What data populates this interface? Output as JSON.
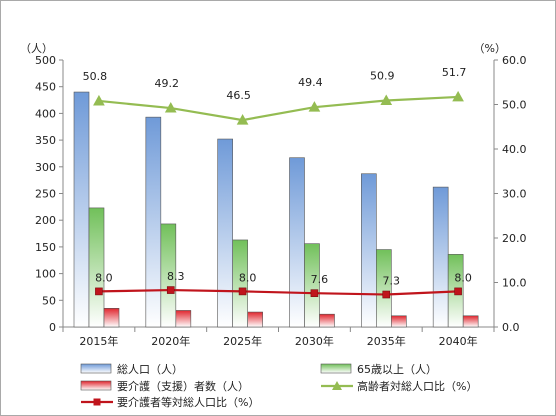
{
  "chart_data": {
    "type": "bar",
    "categories": [
      "2015年",
      "2020年",
      "2025年",
      "2030年",
      "2035年",
      "2040年"
    ],
    "left_axis": {
      "unit_label": "（人）",
      "ylim": [
        0,
        500
      ],
      "ticks": [
        0,
        50,
        100,
        150,
        200,
        250,
        300,
        350,
        400,
        450,
        500
      ]
    },
    "right_axis": {
      "unit_label": "（%）",
      "ylim": [
        0,
        60
      ],
      "ticks": [
        "0.0",
        "10.0",
        "20.0",
        "30.0",
        "40.0",
        "50.0",
        "60.0"
      ]
    },
    "series": [
      {
        "name": "総人口（人）",
        "type": "bar",
        "axis": "left",
        "color": "#6f9ad8",
        "values": [
          440,
          393,
          352,
          317,
          287,
          262
        ]
      },
      {
        "name": "65歳以上（人）",
        "type": "bar",
        "axis": "left",
        "color": "#71c05a",
        "values": [
          223,
          193,
          163,
          156,
          145,
          136
        ]
      },
      {
        "name": "要介護（支援）者数（人）",
        "type": "bar",
        "axis": "left",
        "color": "#e0262e",
        "values": [
          35,
          31,
          28,
          24,
          21,
          21
        ]
      },
      {
        "name": "高齢者対総人口比（%）",
        "type": "line",
        "axis": "right",
        "color": "#94bc52",
        "marker": "triangle",
        "values": [
          50.8,
          49.2,
          46.5,
          49.4,
          50.9,
          51.7
        ],
        "labels": [
          "50.8",
          "49.2",
          "46.5",
          "49.4",
          "50.9",
          "51.7"
        ]
      },
      {
        "name": "要介護者等対総人口比（%）",
        "type": "line",
        "axis": "right",
        "color": "#c0141c",
        "marker": "square",
        "values": [
          8.0,
          8.3,
          8.0,
          7.6,
          7.3,
          8.0
        ],
        "labels": [
          "8.0",
          "8.3",
          "8.0",
          "7.6",
          "7.3",
          "8.0"
        ]
      }
    ],
    "grid": false,
    "legend_position": "bottom"
  }
}
